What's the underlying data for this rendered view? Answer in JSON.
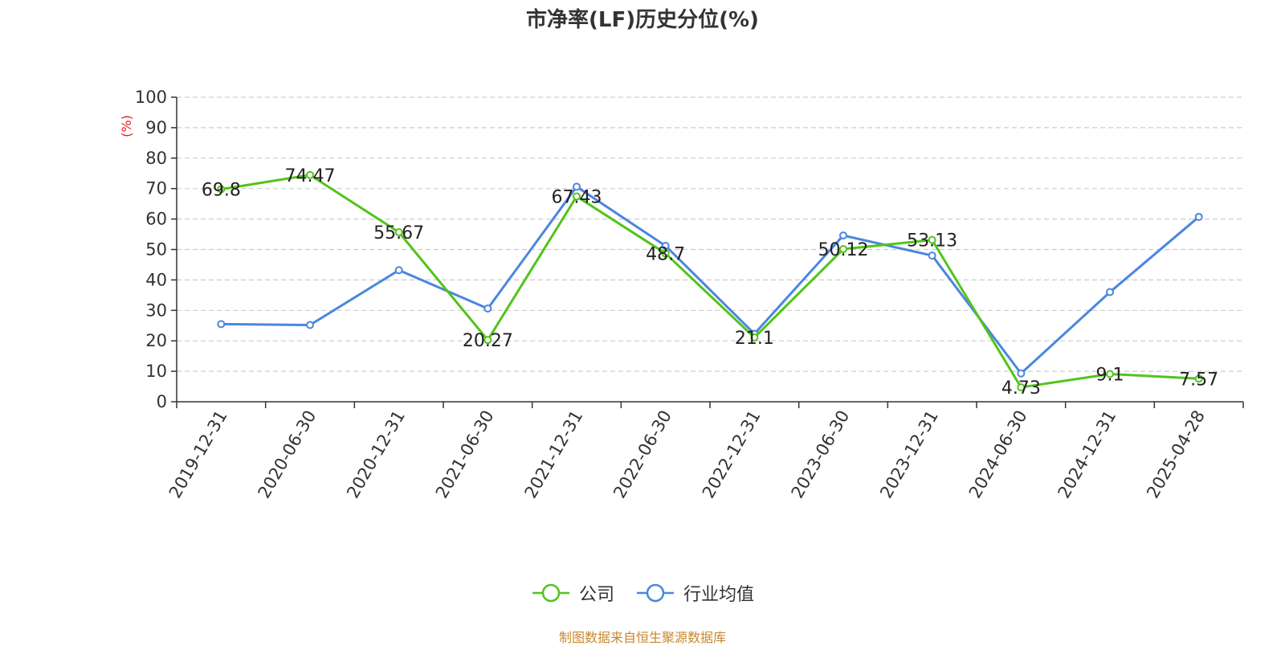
{
  "chart_data": {
    "type": "line",
    "title": "市净率(LF)历史分位(%)",
    "ylabel": "(%)",
    "xlabel": "",
    "ylim": [
      0,
      100
    ],
    "yticks": [
      0,
      10,
      20,
      30,
      40,
      50,
      60,
      70,
      80,
      90,
      100
    ],
    "grid": true,
    "legend_position": "bottom",
    "categories": [
      "2019-12-31",
      "2020-06-30",
      "2020-12-31",
      "2021-06-30",
      "2021-12-31",
      "2022-06-30",
      "2022-12-31",
      "2023-06-30",
      "2023-12-31",
      "2024-06-30",
      "2024-12-31",
      "2025-04-28"
    ],
    "series": [
      {
        "name": "公司",
        "color": "#52c41a",
        "values": [
          69.8,
          74.47,
          55.67,
          20.27,
          67.43,
          48.7,
          21.1,
          50.12,
          53.13,
          4.73,
          9.1,
          7.57
        ],
        "labels": [
          "69.8",
          "74.47",
          "55.67",
          "20.27",
          "67.43",
          "48.7",
          "21.1",
          "50.12",
          "53.13",
          "4.73",
          "9.1",
          "7.57"
        ]
      },
      {
        "name": "行业均值",
        "color": "#4a86e0",
        "values": [
          25.5,
          25.2,
          43.2,
          30.6,
          70.6,
          51.2,
          22.3,
          54.6,
          48.0,
          9.3,
          36.0,
          60.7
        ]
      }
    ]
  },
  "source_text": "制图数据来自恒生聚源数据库"
}
